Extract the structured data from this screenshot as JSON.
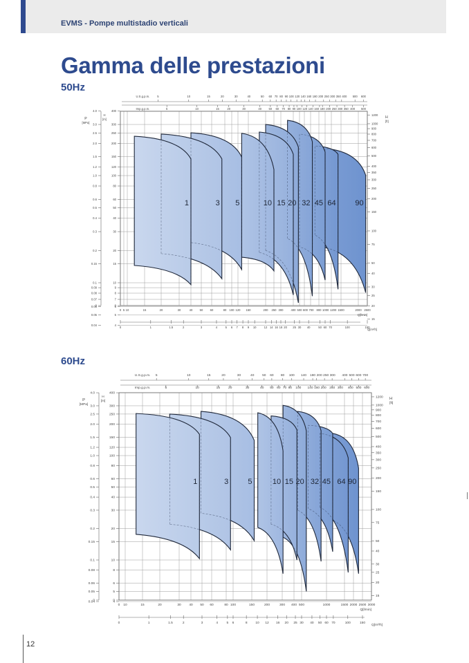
{
  "header": {
    "title": "EVMS - Pompe multistadio verticali"
  },
  "page": {
    "title": "Gamma delle prestazioni",
    "page_number": "12"
  },
  "colors": {
    "brand": "#2e4b8e",
    "header_bg": "#ebebeb",
    "fill_light": "#c9d7ee",
    "fill_dark": "#6e93cf"
  },
  "chart_data": [
    {
      "type": "area",
      "title": "50Hz",
      "xlabel": "Q[l/min]",
      "x_ticks": [
        0,
        5,
        10,
        15,
        20,
        30,
        40,
        50,
        60,
        80,
        100,
        120,
        150,
        200,
        250,
        300,
        400,
        500,
        600,
        700,
        800,
        1000,
        1200,
        1500,
        2000,
        2500
      ],
      "x2label": "Q[m³/h]",
      "x2_ticks": [
        0,
        1,
        1.5,
        2,
        3,
        4,
        5,
        6,
        7,
        8,
        9,
        10,
        12,
        14,
        16,
        18,
        20,
        25,
        30,
        40,
        50,
        60,
        70,
        100,
        150
      ],
      "us_label": "U.S.g.p.m.",
      "us_ticks": [
        5,
        10,
        15,
        20,
        30,
        40,
        50,
        60,
        70,
        80,
        90,
        100,
        120,
        140,
        160,
        180,
        200,
        250,
        300,
        350,
        400,
        500,
        600
      ],
      "imp_label": "Imp.g.p.m.",
      "imp_ticks": [
        5,
        10,
        15,
        20,
        30,
        40,
        50,
        60,
        70,
        80,
        90,
        100,
        120,
        140,
        160,
        180,
        200,
        250,
        300,
        350,
        400,
        500
      ],
      "plabel": [
        "P",
        "[MPa]"
      ],
      "p_ticks": [
        "4.0",
        "3.0",
        "2.5",
        "2.0",
        "1.5",
        "1.2",
        "1.0",
        "0.8",
        "0.6",
        "0.5",
        "0.4",
        "0.3",
        "0.2",
        "0.15",
        "0.1",
        "0.09",
        "0.08",
        "0.07",
        "0.06",
        "0.05",
        "0.04",
        "0"
      ],
      "ylabel": [
        "H",
        "[m]"
      ],
      "y_ticks": [
        400,
        300,
        250,
        200,
        150,
        120,
        100,
        80,
        60,
        50,
        40,
        30,
        20,
        15,
        10,
        9,
        8,
        7,
        6,
        5,
        4,
        0
      ],
      "ftlabel": [
        "H",
        "[ft]"
      ],
      "ft_ticks": [
        1200,
        1000,
        900,
        800,
        700,
        600,
        500,
        400,
        350,
        300,
        250,
        200,
        150,
        100,
        75,
        50,
        40,
        30,
        25,
        20,
        15
      ],
      "yscale": "log",
      "grid": true,
      "series": [
        {
          "name": "1",
          "q_range": [
            11.8,
            40
          ],
          "h_top": [
            233,
            143
          ],
          "h_bottom": [
            14.5,
            9.6
          ]
        },
        {
          "name": "3",
          "q_range": [
            20,
            75
          ],
          "h_top": [
            244,
            143
          ],
          "h_bottom": [
            18.7,
            10.9
          ]
        },
        {
          "name": "5",
          "q_range": [
            40,
            130
          ],
          "h_top": [
            251,
            149
          ],
          "h_bottom": [
            23.7,
            13.3
          ]
        },
        {
          "name": "10",
          "q_range": [
            130,
            250
          ],
          "h_top": [
            248,
            114
          ],
          "h_bottom": [
            17.3,
            12.9
          ]
        },
        {
          "name": "15",
          "q_range": [
            180,
            400
          ],
          "h_top": [
            255,
            158
          ],
          "h_bottom": [
            19.2,
            7.7
          ]
        },
        {
          "name": "20",
          "q_range": [
            200,
            480
          ],
          "h_top": [
            300,
            184
          ],
          "h_bottom": [
            20,
            6.5
          ]
        },
        {
          "name": "32",
          "q_range": [
            350,
            720
          ],
          "h_top": [
            328,
            207
          ],
          "h_bottom": [
            25.9,
            7.5
          ]
        },
        {
          "name": "45",
          "q_range": [
            500,
            1000
          ],
          "h_top": [
            244,
            166
          ],
          "h_bottom": [
            21.6,
            10.6
          ]
        },
        {
          "name": "64",
          "q_range": [
            750,
            1400
          ],
          "h_top": [
            189,
            158
          ],
          "h_bottom": [
            27.9,
            8.7
          ]
        },
        {
          "name": "90",
          "q_range": [
            1000,
            2400
          ],
          "h_top": [
            179,
            101
          ],
          "h_bottom": [
            21.3,
            8.1
          ]
        }
      ]
    },
    {
      "type": "area",
      "title": "60Hz",
      "xlabel": "Q[l/min]",
      "x_ticks": [
        0,
        10,
        15,
        20,
        30,
        40,
        50,
        60,
        80,
        100,
        150,
        200,
        300,
        400,
        500,
        1000,
        1500,
        2000,
        2500,
        3000
      ],
      "x2label": "Q[m³/h]",
      "x2_ticks": [
        0,
        1,
        1.5,
        2,
        3,
        4,
        5,
        6,
        8,
        10,
        12,
        16,
        20,
        25,
        30,
        40,
        50,
        60,
        70,
        100,
        150
      ],
      "us_label": "U.S.g.p.m.",
      "us_ticks": [
        5,
        10,
        15,
        20,
        30,
        40,
        50,
        60,
        80,
        100,
        140,
        180,
        200,
        250,
        300,
        400,
        500,
        600,
        700
      ],
      "imp_label": "Imp.g.p.m.",
      "imp_ticks": [
        5,
        10,
        15,
        20,
        30,
        40,
        50,
        60,
        70,
        80,
        100,
        140,
        160,
        200,
        250,
        300,
        400,
        500,
        600
      ],
      "plabel": [
        "P",
        "[MPa]"
      ],
      "p_ticks": [
        "4.0",
        "3.0",
        "2.5",
        "2.0",
        "1.5",
        "1.2",
        "1.0",
        "0.8",
        "0.6",
        "0.5",
        "0.4",
        "0.3",
        "0.2",
        "0.15",
        "0.1",
        "0.08",
        "0.06",
        "0.05",
        "0.04",
        "0"
      ],
      "ylabel": [
        "H",
        "[m]"
      ],
      "y_ticks": [
        400,
        300,
        250,
        200,
        150,
        120,
        100,
        80,
        60,
        50,
        40,
        30,
        20,
        15,
        10,
        8,
        6,
        5,
        4,
        0
      ],
      "ftlabel": [
        "H",
        "[ft]"
      ],
      "ft_ticks": [
        1200,
        1000,
        900,
        800,
        700,
        600,
        500,
        400,
        350,
        300,
        250,
        200,
        150,
        100,
        75,
        50,
        40,
        30,
        25,
        20,
        15
      ],
      "yscale": "log",
      "grid": true,
      "series": [
        {
          "name": "1",
          "q_range": [
            12.9,
            47.5
          ],
          "h_top": [
            253,
            160
          ],
          "h_bottom": [
            17.6,
            10.3
          ]
        },
        {
          "name": "3",
          "q_range": [
            24.6,
            92
          ],
          "h_top": [
            250,
            149
          ],
          "h_bottom": [
            22,
            12.5
          ]
        },
        {
          "name": "5",
          "q_range": [
            49,
            157
          ],
          "h_top": [
            265,
            140
          ],
          "h_bottom": [
            28,
            15.3
          ]
        },
        {
          "name": "10",
          "q_range": [
            168,
            306
          ],
          "h_top": [
            257,
            111
          ],
          "h_bottom": [
            20.5,
            7.4
          ]
        },
        {
          "name": "15",
          "q_range": [
            223,
            436
          ],
          "h_top": [
            240,
            176
          ],
          "h_bottom": [
            22,
            10
          ]
        },
        {
          "name": "20",
          "q_range": [
            306,
            570
          ],
          "h_top": [
            303,
            173
          ],
          "h_bottom": [
            16.5,
            5
          ]
        },
        {
          "name": "32",
          "q_range": [
            445,
            860
          ],
          "h_top": [
            265,
            173
          ],
          "h_bottom": [
            30,
            9.7
          ]
        },
        {
          "name": "45",
          "q_range": [
            600,
            1150
          ],
          "h_top": [
            195,
            163
          ],
          "h_bottom": [
            31,
            12
          ]
        },
        {
          "name": "64",
          "q_range": [
            830,
            1690
          ],
          "h_top": [
            163,
            95
          ],
          "h_bottom": [
            32,
            7.6
          ]
        },
        {
          "name": "90",
          "q_range": [
            1150,
            2270
          ],
          "h_top": [
            163,
            76
          ],
          "h_bottom": [
            24,
            7.4
          ]
        }
      ]
    }
  ]
}
